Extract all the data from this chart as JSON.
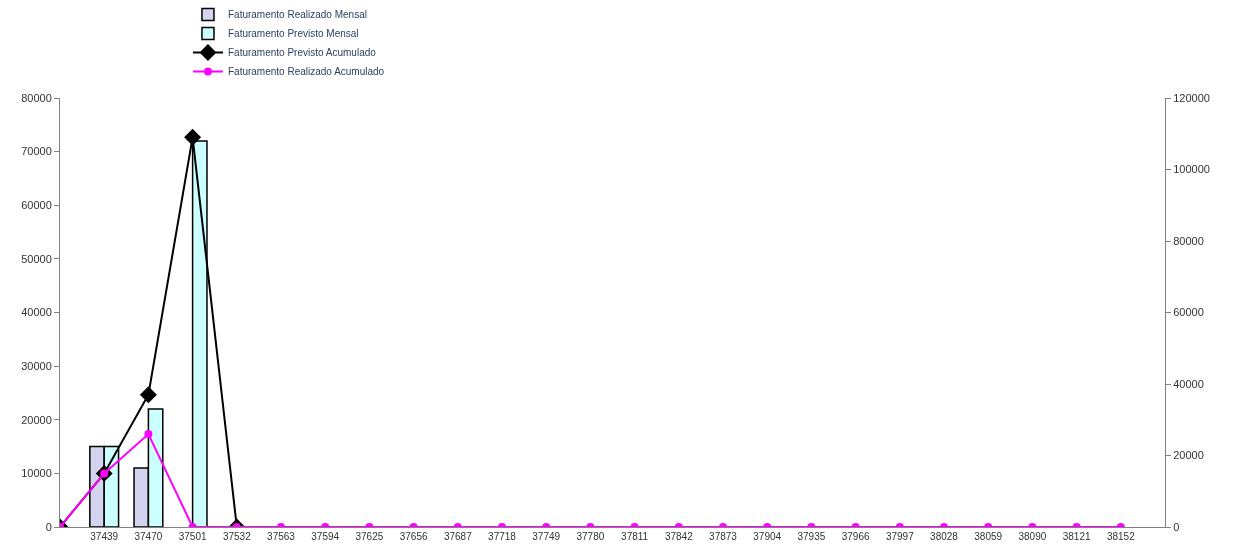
{
  "chart_data": {
    "type": "bar",
    "categories": [
      null,
      "37439",
      "37470",
      "37501",
      "37532",
      "37563",
      "37594",
      "37625",
      "37656",
      "37687",
      "37718",
      "37749",
      "37780",
      "37811",
      "37842",
      "37873",
      "37904",
      "37935",
      "37966",
      "37997",
      "38028",
      "38059",
      "38090",
      "38121",
      "38152"
    ],
    "series": [
      {
        "name": "Faturamento Realizado Mensal",
        "color": "#d4d4f0",
        "values": [
          null,
          15000,
          11000,
          null,
          null,
          null,
          null,
          null,
          null,
          null,
          null,
          null,
          null,
          null,
          null,
          null,
          null,
          null,
          null,
          null,
          null,
          null,
          null,
          null,
          null
        ]
      },
      {
        "name": "Faturamento Previsto Mensal",
        "color": "#ccffff",
        "values": [
          null,
          15000,
          22000,
          72000,
          null,
          null,
          null,
          null,
          null,
          null,
          null,
          null,
          null,
          null,
          null,
          null,
          null,
          null,
          null,
          null,
          null,
          null,
          null,
          null,
          null
        ]
      },
      {
        "name": "Faturamento Previsto Acumulado",
        "type": "line",
        "axis": "y2",
        "marker": "diamond",
        "color": "#000000",
        "values": [
          0,
          15000,
          37000,
          109000,
          0,
          null,
          null,
          null,
          null,
          null,
          null,
          null,
          null,
          null,
          null,
          null,
          null,
          null,
          null,
          null,
          null,
          null,
          null,
          null,
          null
        ]
      },
      {
        "name": "Faturamento Realizado Acumulado",
        "type": "line",
        "axis": "y2",
        "marker": "circle",
        "color": "#ff00ff",
        "values": [
          0,
          15000,
          26000,
          0,
          0,
          0,
          0,
          0,
          0,
          0,
          0,
          0,
          0,
          0,
          0,
          0,
          0,
          0,
          0,
          0,
          0,
          0,
          0,
          0,
          0
        ]
      }
    ],
    "ylim": [
      0,
      80000
    ],
    "yticks": [
      0,
      10000,
      20000,
      30000,
      40000,
      50000,
      60000,
      70000,
      80000
    ],
    "y2lim": [
      0,
      120000
    ],
    "y2ticks": [
      0,
      20000,
      40000,
      60000,
      80000,
      100000,
      120000
    ],
    "legend": "top"
  }
}
